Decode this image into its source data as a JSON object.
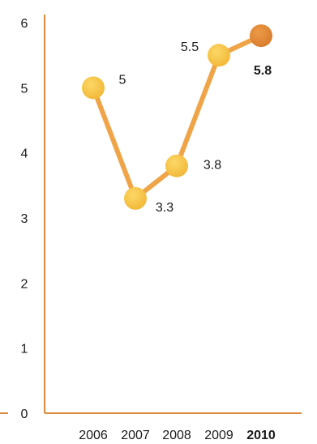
{
  "chart_data": {
    "type": "line",
    "x": [
      "2006",
      "2007",
      "2008",
      "2009",
      "2010"
    ],
    "values": [
      5,
      3.3,
      3.8,
      5.5,
      5.8
    ],
    "value_labels": [
      "5",
      "3.3",
      "3.8",
      "5.5",
      "5.8"
    ],
    "highlight_index": 4,
    "ylim": [
      0,
      6
    ],
    "yticks": [
      "0",
      "1",
      "2",
      "3",
      "4",
      "5",
      "6"
    ],
    "grid": false,
    "colors": {
      "line": "#F0A448",
      "axis": "#D98A3A",
      "point": "#F7C446",
      "point_highlight": "#E0893A",
      "label_highlight": "#E89A3C",
      "text": "#1a1a1a"
    }
  }
}
